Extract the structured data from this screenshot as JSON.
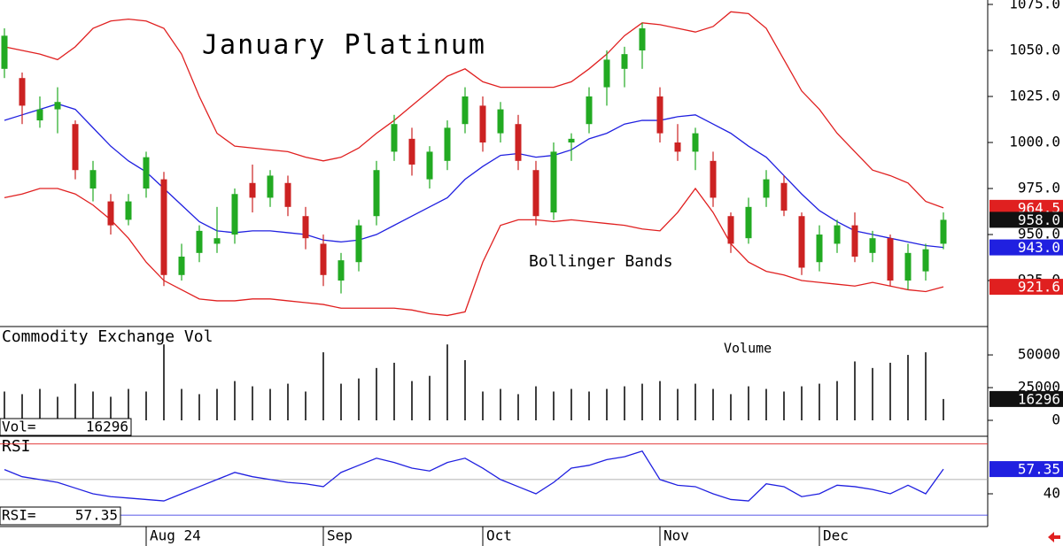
{
  "chart_data": [
    {
      "type": "candlestick",
      "title": "January Platinum",
      "annotation": "Bollinger Bands",
      "up_color": "#22aa22",
      "down_color": "#cc2222",
      "open": [
        1040,
        1035,
        1012,
        1018,
        1010,
        975,
        968,
        958,
        975,
        980,
        928,
        940,
        945,
        950,
        978,
        970,
        978,
        960,
        945,
        925,
        935,
        960,
        995,
        1002,
        980,
        990,
        1010,
        1020,
        1005,
        1010,
        985,
        962,
        1000,
        1010,
        1030,
        1040,
        1050,
        1025,
        1000,
        995,
        990,
        960,
        948,
        970,
        978,
        960,
        935,
        945,
        955,
        940,
        948,
        925,
        930,
        945
      ],
      "high": [
        1062,
        1038,
        1025,
        1030,
        1012,
        990,
        972,
        972,
        995,
        984,
        945,
        955,
        965,
        975,
        988,
        985,
        982,
        965,
        950,
        940,
        958,
        990,
        1015,
        1008,
        998,
        1012,
        1030,
        1025,
        1022,
        1015,
        990,
        1000,
        1005,
        1030,
        1050,
        1052,
        1065,
        1030,
        1010,
        1008,
        995,
        962,
        970,
        985,
        982,
        962,
        955,
        958,
        962,
        952,
        950,
        945,
        945,
        962
      ],
      "low": [
        1035,
        1010,
        1008,
        1005,
        980,
        968,
        950,
        955,
        970,
        922,
        925,
        935,
        940,
        945,
        962,
        965,
        960,
        942,
        922,
        918,
        930,
        955,
        990,
        982,
        975,
        985,
        1005,
        995,
        1000,
        985,
        955,
        958,
        990,
        1005,
        1020,
        1030,
        1040,
        1000,
        990,
        985,
        965,
        940,
        945,
        965,
        960,
        928,
        930,
        940,
        935,
        935,
        922,
        920,
        925,
        942
      ],
      "close": [
        1058,
        1020,
        1018,
        1022,
        985,
        985,
        955,
        968,
        992,
        928,
        938,
        952,
        948,
        972,
        970,
        982,
        965,
        948,
        928,
        936,
        955,
        985,
        1010,
        988,
        995,
        1008,
        1025,
        1000,
        1018,
        990,
        960,
        995,
        1002,
        1025,
        1045,
        1048,
        1062,
        1005,
        995,
        1005,
        970,
        945,
        965,
        980,
        963,
        932,
        950,
        955,
        938,
        948,
        925,
        940,
        942,
        958
      ],
      "close_badge": {
        "value": 958,
        "label": "958.0"
      },
      "series": [
        {
          "color": "#e02020",
          "values": [
            1052,
            1050,
            1048,
            1045,
            1052,
            1062,
            1066,
            1067,
            1066,
            1062,
            1048,
            1025,
            1005,
            998,
            997,
            996,
            995,
            992,
            990,
            992,
            997,
            1005,
            1012,
            1020,
            1028,
            1036,
            1040,
            1033,
            1030,
            1030,
            1030,
            1030,
            1033,
            1040,
            1048,
            1058,
            1065,
            1064,
            1062,
            1060,
            1063,
            1071,
            1070,
            1062,
            1045,
            1028,
            1018,
            1005,
            995,
            985,
            982,
            978,
            968,
            964.5
          ],
          "badge": 964.5
        },
        {
          "color": "#2020e0",
          "values": [
            1012,
            1015,
            1018,
            1021,
            1018,
            1008,
            998,
            990,
            984,
            975,
            966,
            957,
            952,
            951,
            952,
            952,
            951,
            950,
            947,
            946,
            947,
            950,
            955,
            960,
            965,
            970,
            980,
            987,
            993,
            994,
            992,
            993,
            996,
            1002,
            1005,
            1010,
            1012,
            1012,
            1014,
            1015,
            1010,
            1005,
            998,
            992,
            982,
            972,
            963,
            957,
            952,
            950,
            948,
            946,
            944,
            943
          ],
          "badge": {
            "value": 943,
            "label": "943.0"
          }
        },
        {
          "color": "#e02020",
          "values": [
            970,
            972,
            975,
            975,
            972,
            966,
            958,
            948,
            935,
            925,
            920,
            915,
            914,
            914,
            915,
            915,
            914,
            913,
            912,
            910,
            910,
            910,
            910,
            909,
            907,
            906,
            908,
            935,
            955,
            958,
            958,
            957,
            958,
            957,
            956,
            955,
            953,
            952,
            962,
            975,
            962,
            945,
            935,
            930,
            928,
            925,
            924,
            923,
            922,
            924,
            922,
            920,
            919,
            921.6
          ],
          "badge": 921.6
        }
      ],
      "xlim": [
        0,
        53
      ],
      "xticks": [
        {
          "value": 8,
          "label": "Aug 24"
        },
        {
          "value": 18,
          "label": "Sep"
        },
        {
          "value": 27,
          "label": "Oct"
        },
        {
          "value": 37,
          "label": "Nov"
        },
        {
          "value": 46,
          "label": "Dec"
        }
      ],
      "ylim": [
        900.5,
        1077.4
      ],
      "yticks": [
        {
          "value": 925,
          "label": "925.0"
        },
        {
          "value": 950,
          "label": "950.0"
        },
        {
          "value": 975,
          "label": "975.0"
        },
        {
          "value": 1000,
          "label": "1000.0"
        },
        {
          "value": 1025,
          "label": "1025.0"
        },
        {
          "value": 1050,
          "label": "1050.0"
        },
        {
          "value": 1075,
          "label": "1075.0"
        }
      ]
    },
    {
      "type": "volume",
      "title": "Commodity Exchange Vol",
      "annotation": "Volume",
      "readout_label": "Vol=",
      "color": "#000000",
      "values": [
        22000,
        20000,
        24000,
        18000,
        28000,
        22000,
        18000,
        24000,
        22000,
        58000,
        24000,
        20000,
        24000,
        30000,
        26000,
        24000,
        28000,
        22000,
        52000,
        28000,
        32000,
        40000,
        44000,
        30000,
        34000,
        58000,
        46000,
        22000,
        24000,
        20000,
        26000,
        22000,
        24000,
        22000,
        24000,
        26000,
        28000,
        30000,
        24000,
        28000,
        24000,
        20000,
        26000,
        24000,
        22000,
        26000,
        28000,
        30000,
        45000,
        40000,
        44000,
        50000,
        52000,
        16296
      ],
      "ylim": [
        -11500,
        71000
      ],
      "yticks": [
        0,
        25000,
        50000
      ]
    },
    {
      "type": "rsi",
      "title": "RSI",
      "readout_label": "RSI=",
      "color": "#2020e0",
      "values": [
        57,
        52,
        50,
        48,
        44,
        40,
        38,
        37,
        36,
        35,
        40,
        45,
        50,
        55,
        52,
        50,
        48,
        47,
        45,
        55,
        60,
        65,
        62,
        58,
        56,
        62,
        65,
        58,
        50,
        45,
        40,
        48,
        58,
        60,
        64,
        66,
        70,
        50,
        46,
        45,
        40,
        36,
        35,
        47,
        45,
        38,
        40,
        46,
        45,
        43,
        40,
        46,
        40,
        57.35
      ],
      "levels": [
        {
          "value": 75,
          "color": "#e02020"
        },
        {
          "value": 50,
          "color": "#999999"
        },
        {
          "value": 25,
          "color": "#2020e0"
        }
      ],
      "ylim": [
        17,
        80.4
      ],
      "yticks": [
        40
      ]
    }
  ]
}
